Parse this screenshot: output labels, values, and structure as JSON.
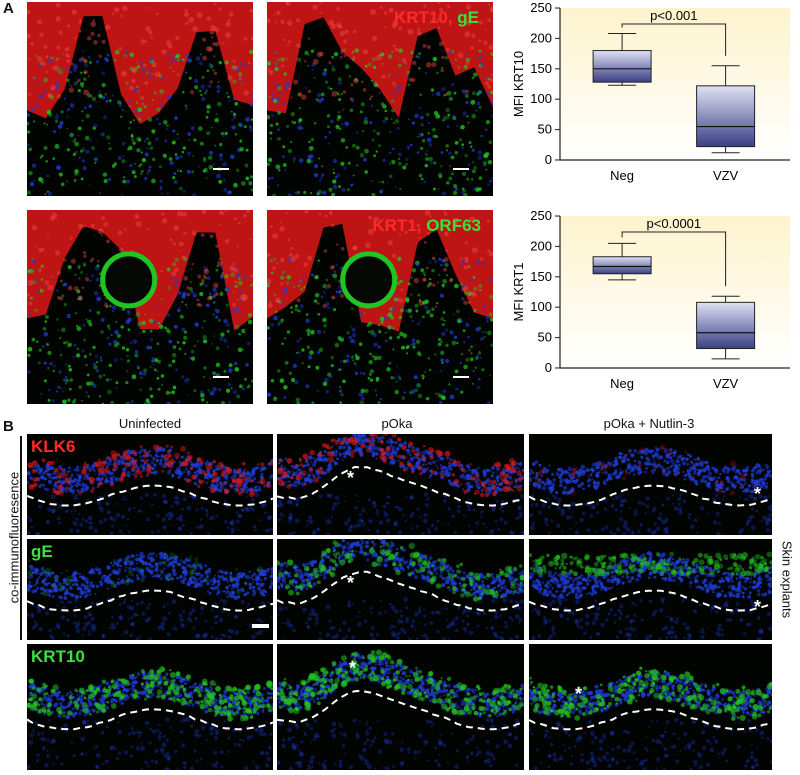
{
  "panels": {
    "a_letter": "A",
    "b_letter": "B"
  },
  "panel_a": {
    "row1_label_red": "KRT10,",
    "row1_label_green": " gE",
    "row2_label_red": "KRT1,",
    "row2_label_green": " ORF63"
  },
  "panel_b": {
    "col_titles": [
      "Uninfected",
      "pOka",
      "pOka + Nutlin-3"
    ],
    "row_labels": [
      "KLK6",
      "gE",
      "KRT10"
    ],
    "left_label": "co-immunofluoresence",
    "right_label": "Skin explants",
    "asterisk": "*"
  },
  "colors": {
    "red_stain": "#e01818",
    "green_stain": "#22c422",
    "blue_stain": "#1e3cd8",
    "box_fill_top": "#dfe1f3",
    "box_fill_bottom": "#3a3f85",
    "chart_bg_top": "#fdf3cd",
    "chart_bg_bottom": "#ffffff"
  },
  "chart_data": [
    {
      "type": "box",
      "categories": [
        "Neg",
        "VZV"
      ],
      "ylabel": "MFI KRT10",
      "ylim": [
        0,
        250
      ],
      "yticks": [
        0,
        50,
        100,
        150,
        200,
        250
      ],
      "boxes": [
        {
          "category": "Neg",
          "min": 123,
          "q1": 128,
          "median": 150,
          "q3": 180,
          "max": 208
        },
        {
          "category": "VZV",
          "min": 12,
          "q1": 22,
          "median": 55,
          "q3": 122,
          "max": 155
        }
      ],
      "annotation": "p<0.001"
    },
    {
      "type": "box",
      "categories": [
        "Neg",
        "VZV"
      ],
      "ylabel": "MFI KRT1",
      "ylim": [
        0,
        250
      ],
      "yticks": [
        0,
        50,
        100,
        150,
        200,
        250
      ],
      "boxes": [
        {
          "category": "Neg",
          "min": 145,
          "q1": 155,
          "median": 167,
          "q3": 183,
          "max": 205
        },
        {
          "category": "VZV",
          "min": 15,
          "q1": 32,
          "median": 58,
          "q3": 108,
          "max": 118
        }
      ],
      "annotation": "p<0.0001"
    }
  ]
}
